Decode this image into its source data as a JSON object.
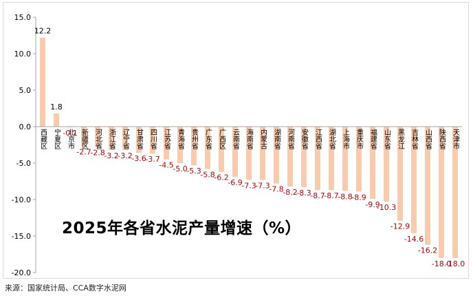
{
  "chart_data": {
    "type": "bar",
    "title": "2025年各省水泥产量增速（%）",
    "categories": [
      "西藏区",
      "宁夏区",
      "北京市",
      "新疆区",
      "河北省",
      "浙江省",
      "辽宁省",
      "甘肃省",
      "四川省",
      "江苏省",
      "青海省",
      "贵州省",
      "广东省",
      "广西区",
      "云南省",
      "海南省",
      "内蒙古",
      "湖南省",
      "河南省",
      "安徽省",
      "江西省",
      "湖北省",
      "上海市",
      "重庆市",
      "福建省",
      "山东省",
      "黑龙江",
      "吉林省",
      "山西省",
      "陕西省",
      "天津市"
    ],
    "values": [
      12.2,
      1.8,
      -0.1,
      -2.7,
      -2.8,
      -3.2,
      -3.2,
      -3.6,
      -3.7,
      -4.5,
      -5.0,
      -5.3,
      -5.8,
      -6.2,
      -6.9,
      -7.3,
      -7.3,
      -7.8,
      -8.2,
      -8.3,
      -8.7,
      -8.7,
      -8.8,
      -8.9,
      -9.9,
      -10.3,
      -12.9,
      -14.6,
      -16.2,
      -18.0,
      -18.0
    ],
    "value_labels": [
      "12.2",
      "1.8",
      "-0.1",
      "-2.7",
      "-2.8",
      "-3.2",
      "-3.2",
      "-3.6",
      "-3.7",
      "-4.5",
      "-5.0",
      "-5.3",
      "-5.8",
      "-6.2",
      "-6.9",
      "-7.3",
      "-7.3",
      "-7.8",
      "-8.2",
      "-8.3",
      "-8.7",
      "-8.7",
      "-8.8",
      "-8.9",
      "-9.9",
      "-10.3",
      "-12.9",
      "-14.6",
      "-16.2",
      "-18.0",
      "-18.0"
    ],
    "yticks": [
      "15.0",
      "10.0",
      "5.0",
      "0.0",
      "-5.0",
      "-10.0",
      "-15.0",
      "-20.0"
    ],
    "ylim": [
      -20,
      15
    ],
    "grid": false,
    "colors": {
      "bar": "#f8cbad",
      "negative_label": "#c00000",
      "positive_label": "#000000",
      "axis": "#a6a6a6"
    }
  },
  "source": "来源：国家统计局、CCA数字水泥网"
}
